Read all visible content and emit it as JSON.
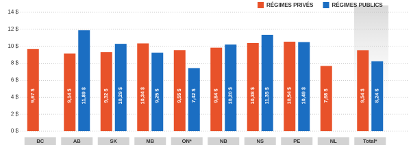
{
  "chart_data": {
    "type": "bar",
    "categories": [
      "BC",
      "AB",
      "SK",
      "MB",
      "ON*",
      "NB",
      "NS",
      "PE",
      "NL",
      "Total*"
    ],
    "series": [
      {
        "name": "RÉGIMES PRIVÉS",
        "color": "#e8522a",
        "values": [
          9.67,
          9.14,
          9.32,
          10.34,
          9.55,
          9.84,
          10.38,
          10.54,
          7.68,
          9.54
        ],
        "value_labels": [
          "9,67 $",
          "9,14 $",
          "9,32 $",
          "10,34 $",
          "9,55 $",
          "9,84 $",
          "10,38 $",
          "10,54 $",
          "7,68 $",
          "9,54 $"
        ]
      },
      {
        "name": "RÉGIMES PUBLICS",
        "color": "#1b6ec2",
        "values": [
          null,
          11.89,
          10.29,
          9.25,
          7.42,
          10.2,
          11.35,
          10.49,
          null,
          8.24
        ],
        "value_labels": [
          null,
          "11,89 $",
          "10,29 $",
          "9,25 $",
          "7,42 $",
          "10,20 $",
          "11,35 $",
          "10,49 $",
          null,
          "8,24 $"
        ]
      }
    ],
    "ylim": [
      0,
      14
    ],
    "yticks": [
      {
        "value": 0,
        "label": "0 $"
      },
      {
        "value": 2,
        "label": "2 $"
      },
      {
        "value": 4,
        "label": "4 $"
      },
      {
        "value": 6,
        "label": "6 $"
      },
      {
        "value": 8,
        "label": "8 $"
      },
      {
        "value": 10,
        "label": "10 $"
      },
      {
        "value": 12,
        "label": "12 $"
      },
      {
        "value": 14,
        "label": "14 $"
      }
    ],
    "grid": true,
    "legend": "top-right"
  }
}
